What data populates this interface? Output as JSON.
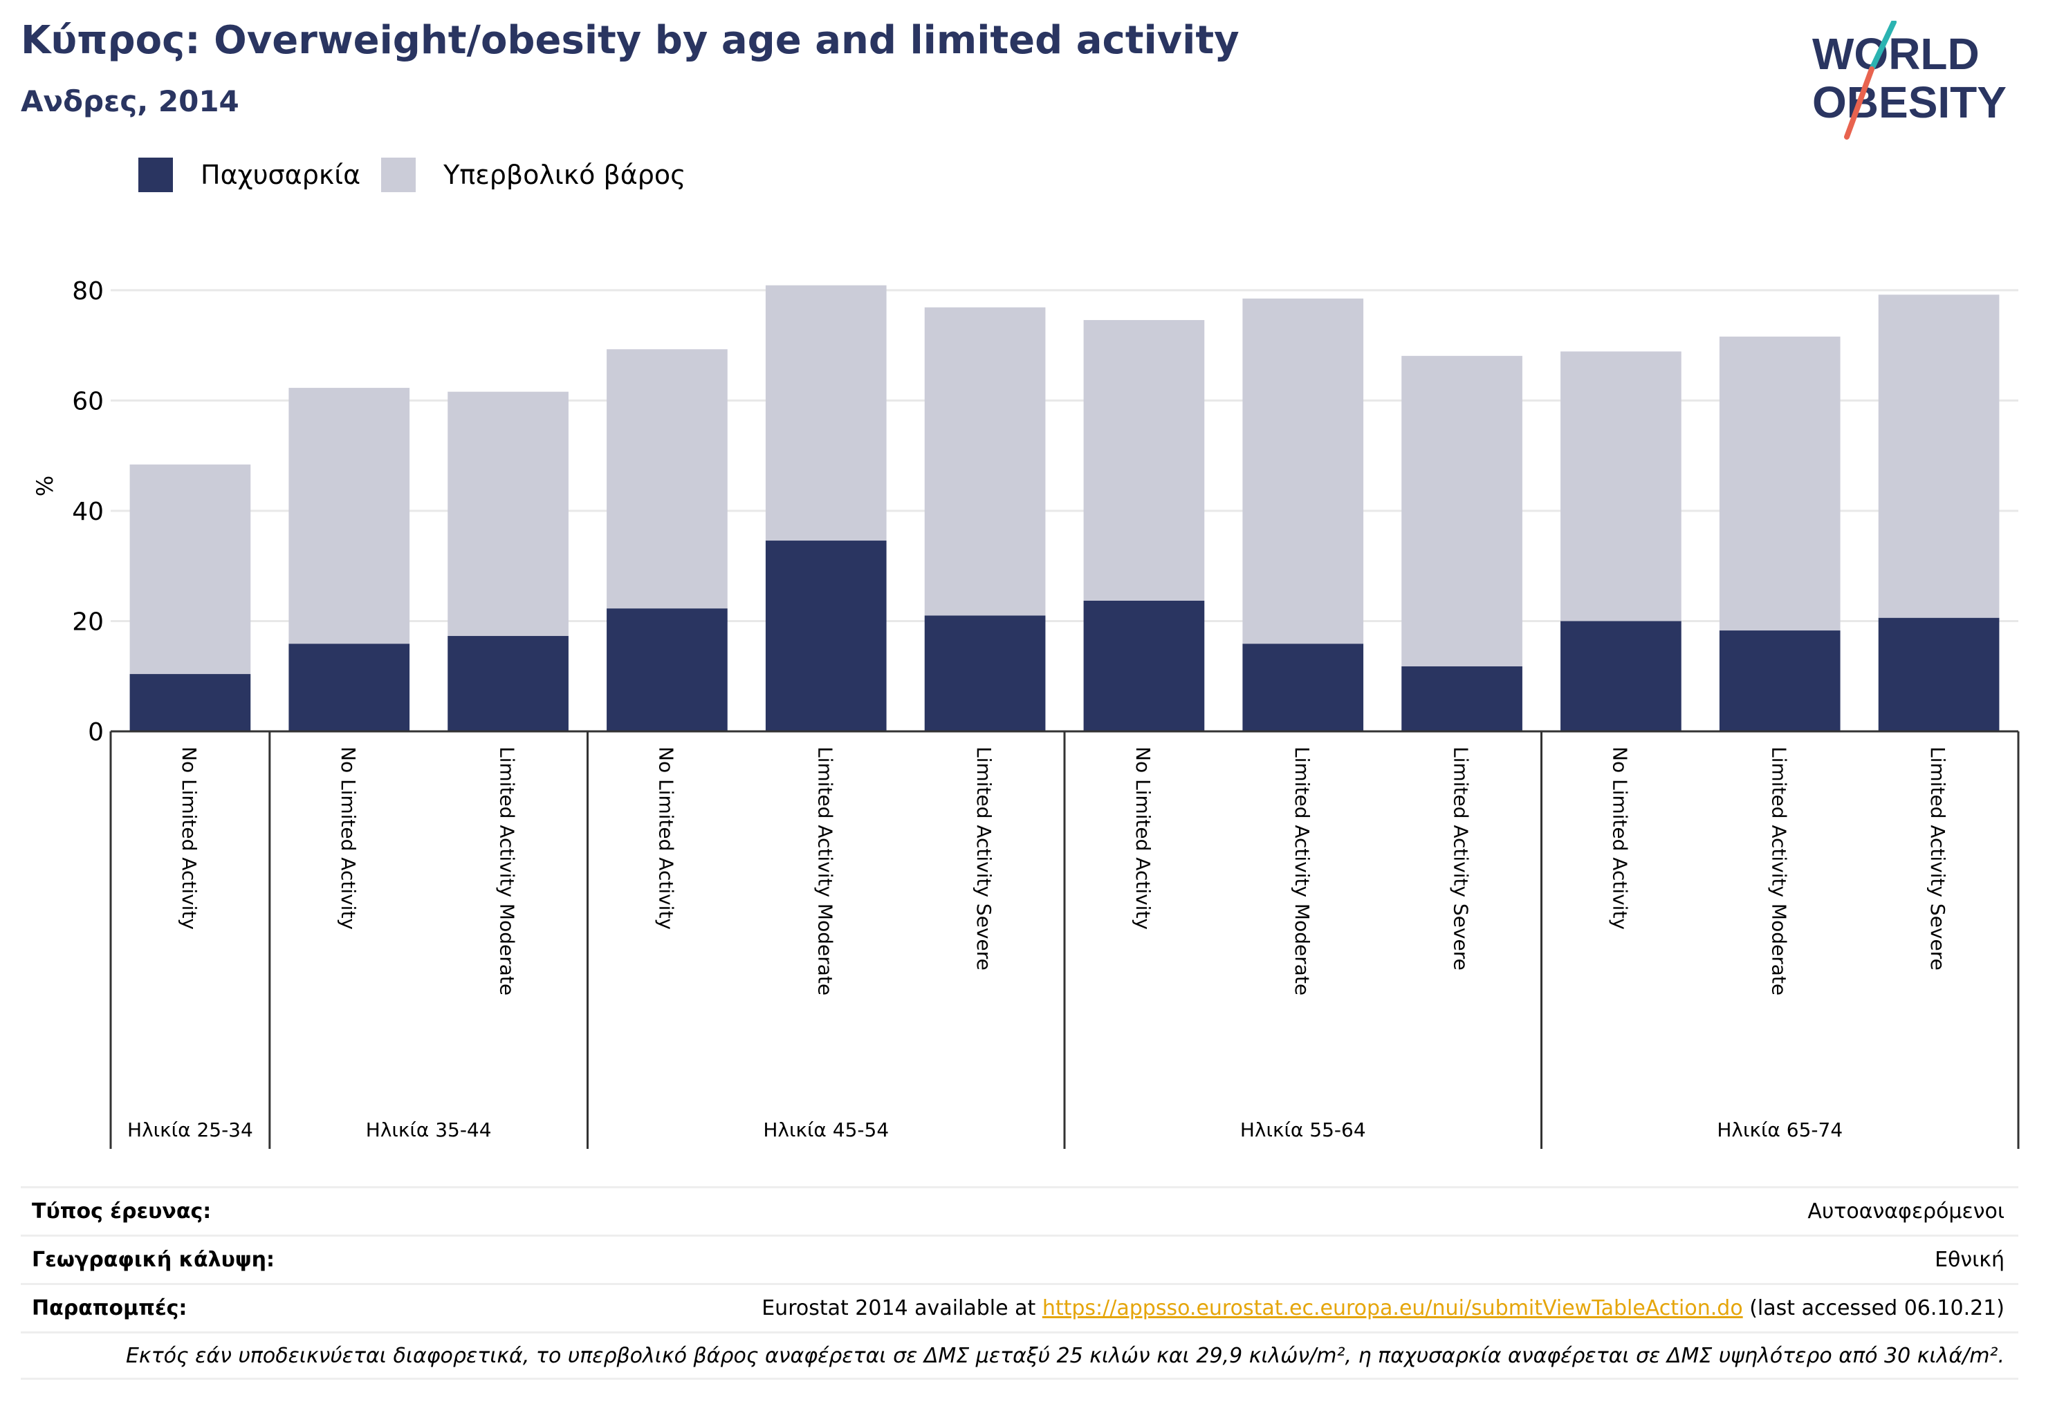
{
  "header": {
    "title": "Κύπρος: Overweight/obesity by age and limited activity",
    "subtitle": "Ανδρες, 2014"
  },
  "logo": {
    "line1": "WORLD",
    "line2": "OBESITY"
  },
  "colors": {
    "obesity": "#2a3561",
    "overweight": "#cbccd8",
    "title": "#2a3561",
    "link": "#e5a50a",
    "grid": "#e8e8e8"
  },
  "chart_data": {
    "type": "bar",
    "stacked": true,
    "ylabel": "%",
    "ylim": [
      0,
      84
    ],
    "yticks": [
      0,
      20,
      40,
      60,
      80
    ],
    "grid": true,
    "legend_position": "top-left",
    "categories": [
      "No Limited Activity",
      "No Limited Activity",
      "Limited Activity Moderate",
      "No Limited Activity",
      "Limited Activity Moderate",
      "Limited Activity Severe",
      "No Limited Activity",
      "Limited Activity Moderate",
      "Limited Activity Severe",
      "No Limited Activity",
      "Limited Activity Moderate",
      "Limited Activity Severe"
    ],
    "groups": [
      {
        "label": "Ηλικία 25-34",
        "count": 1
      },
      {
        "label": "Ηλικία 35-44",
        "count": 2
      },
      {
        "label": "Ηλικία 45-54",
        "count": 3
      },
      {
        "label": "Ηλικία 55-64",
        "count": 3
      },
      {
        "label": "Ηλικία 65-74",
        "count": 3
      }
    ],
    "series": [
      {
        "name": "Παχυσαρκία",
        "values": [
          10.4,
          15.9,
          17.3,
          22.3,
          34.6,
          21.0,
          23.7,
          15.9,
          11.8,
          20.0,
          18.3,
          20.6
        ]
      },
      {
        "name": "Υπερβολικό βάρος",
        "values": [
          38.0,
          46.4,
          44.3,
          47.0,
          46.3,
          55.9,
          50.9,
          62.6,
          56.3,
          48.9,
          53.3,
          58.6
        ]
      }
    ]
  },
  "info": {
    "survey_label": "Τύπος έρευνας:",
    "survey_value": "Αυτοαναφερόμενοι",
    "coverage_label": "Γεωγραφική κάλυψη:",
    "coverage_value": "Εθνική",
    "refs_label": "Παραπομπές:",
    "refs_prefix": "Eurostat 2014 available at ",
    "refs_link": "https://appsso.eurostat.ec.europa.eu/nui/submitViewTableAction.do",
    "refs_suffix": " (last accessed 06.10.21)",
    "note": "Εκτός εάν υποδεικνύεται διαφορετικά, το υπερβολικό βάρος αναφέρεται σε ΔΜΣ μεταξύ 25 κιλών και 29,9 κιλών/m², η παχυσαρκία αναφέρεται σε ΔΜΣ υψηλότερο από 30 κιλά/m²."
  }
}
